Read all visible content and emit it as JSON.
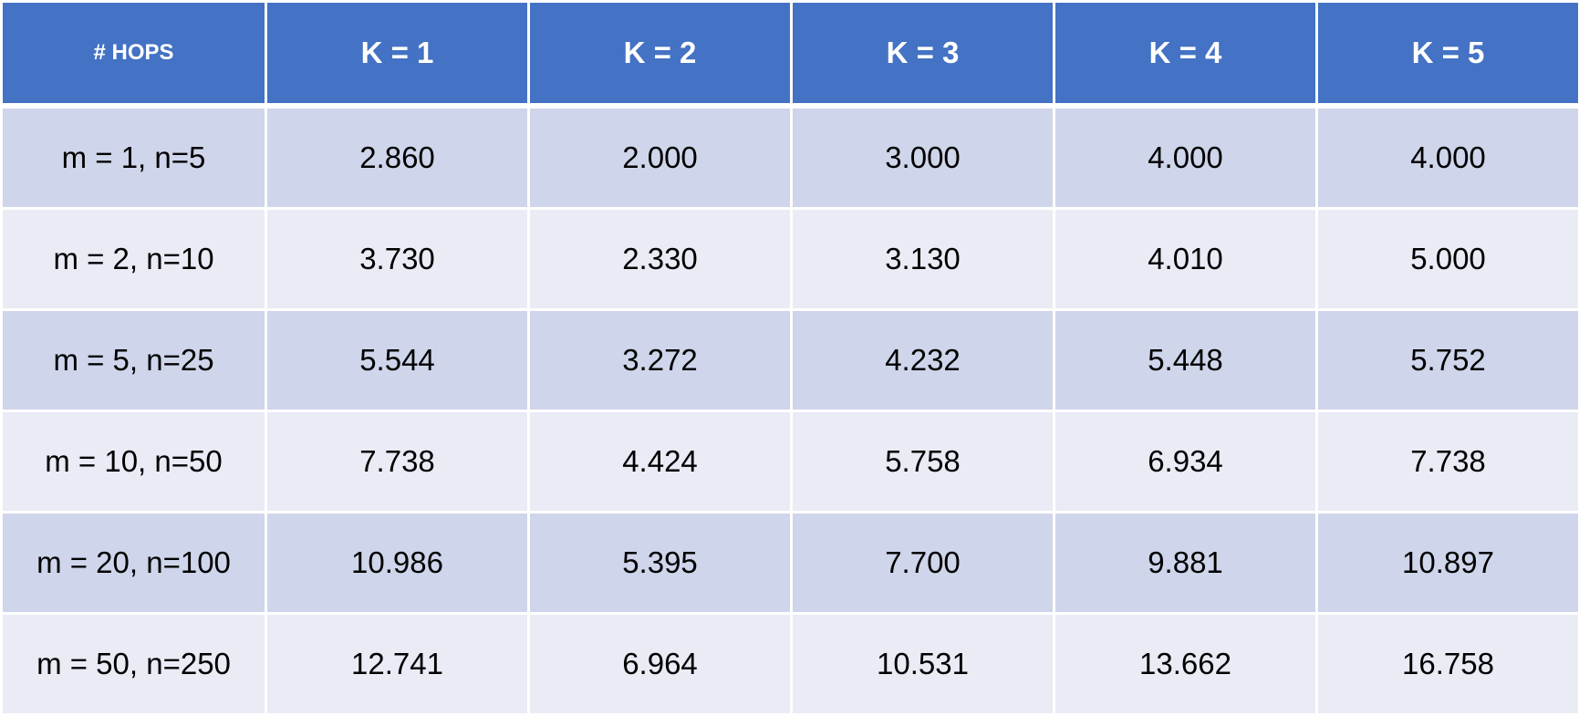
{
  "chart_data": {
    "type": "table",
    "columns": [
      "# HOPS",
      "K = 1",
      "K = 2",
      "K = 3",
      "K = 4",
      "K = 5"
    ],
    "rows": [
      [
        "m = 1, n=5",
        "2.860",
        "2.000",
        "3.000",
        "4.000",
        "4.000"
      ],
      [
        "m = 2, n=10",
        "3.730",
        "2.330",
        "3.130",
        "4.010",
        "5.000"
      ],
      [
        "m = 5, n=25",
        "5.544",
        "3.272",
        "4.232",
        "5.448",
        "5.752"
      ],
      [
        "m = 10, n=50",
        "7.738",
        "4.424",
        "5.758",
        "6.934",
        "7.738"
      ],
      [
        "m = 20, n=100",
        "10.986",
        "5.395",
        "7.700",
        "9.881",
        "10.897"
      ],
      [
        "m = 50, n=250",
        "12.741",
        "6.964",
        "10.531",
        "13.662",
        "16.758"
      ]
    ],
    "colors": {
      "header": "#4472c4",
      "row_band_dark": "#cfd5ea",
      "row_band_light": "#e9ebf5"
    }
  }
}
